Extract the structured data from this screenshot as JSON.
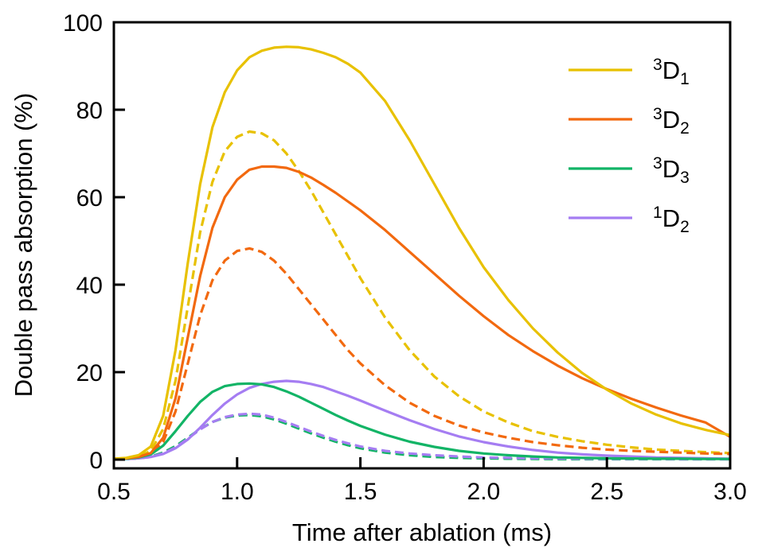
{
  "chart_data": {
    "type": "line",
    "title": "",
    "xlabel": "Time after ablation (ms)",
    "ylabel": "Double pass absorption (%)",
    "xlim": [
      0.5,
      3.0
    ],
    "ylim": [
      -2,
      100
    ],
    "xticks": [
      0.5,
      1.0,
      1.5,
      2.0,
      2.5,
      3.0
    ],
    "xtick_labels": [
      "0.5",
      "1.0",
      "1.5",
      "2.0",
      "2.5",
      "3.0"
    ],
    "yticks": [
      0,
      20,
      40,
      60,
      80,
      100
    ],
    "ytick_labels": [
      "0",
      "20",
      "40",
      "60",
      "80",
      "100"
    ],
    "grid": false,
    "legend_position": "top-right",
    "x": [
      0.5,
      0.55,
      0.6,
      0.65,
      0.7,
      0.75,
      0.8,
      0.85,
      0.9,
      0.95,
      1.0,
      1.05,
      1.1,
      1.15,
      1.2,
      1.25,
      1.3,
      1.35,
      1.4,
      1.45,
      1.5,
      1.6,
      1.7,
      1.8,
      1.9,
      2.0,
      2.1,
      2.2,
      2.3,
      2.4,
      2.5,
      2.6,
      2.7,
      2.8,
      2.9,
      3.0
    ],
    "series": [
      {
        "name": "3D1",
        "color": "#e8c100",
        "style": "solid",
        "values": [
          0.2,
          0.4,
          1.0,
          3,
          10,
          25,
          45,
          63,
          76,
          84,
          89,
          92,
          93.5,
          94.2,
          94.4,
          94.3,
          93.8,
          93,
          92,
          90.5,
          88.5,
          82,
          73,
          63,
          53,
          44,
          36.5,
          30,
          24.5,
          19.8,
          16,
          12.8,
          10.3,
          8.3,
          6.8,
          5.6
        ]
      },
      {
        "name": "3D2",
        "color": "#f2690f",
        "style": "solid",
        "values": [
          0.2,
          0.3,
          0.6,
          1.5,
          5,
          14,
          28,
          42,
          53,
          60,
          64,
          66.3,
          67,
          67,
          66.7,
          65.8,
          64.5,
          62.8,
          61,
          59,
          57,
          52.5,
          47.5,
          42.5,
          37.5,
          32.8,
          28.5,
          24.8,
          21.5,
          18.6,
          16.1,
          13.9,
          11.9,
          10.1,
          8.5,
          5.2
        ]
      },
      {
        "name": "3D3",
        "color": "#12b466",
        "style": "solid",
        "values": [
          0.1,
          0.2,
          0.5,
          1.2,
          3.2,
          6.5,
          10,
          13.2,
          15.5,
          16.8,
          17.3,
          17.4,
          17.2,
          16.6,
          15.6,
          14.4,
          13,
          11.6,
          10.2,
          8.9,
          7.7,
          5.7,
          4.1,
          2.9,
          2.0,
          1.4,
          1.0,
          0.7,
          0.5,
          0.4,
          0.3,
          0.25,
          0.2,
          0.2,
          0.15,
          0.15
        ]
      },
      {
        "name": "1D2",
        "color": "#a57df2",
        "style": "solid",
        "values": [
          0.1,
          0.15,
          0.3,
          0.6,
          1.3,
          2.6,
          4.6,
          7.3,
          10.2,
          12.8,
          14.9,
          16.4,
          17.3,
          17.8,
          18,
          17.8,
          17.3,
          16.6,
          15.6,
          14.6,
          13.5,
          11.2,
          9,
          7,
          5.3,
          4.0,
          3.0,
          2.2,
          1.6,
          1.2,
          0.9,
          0.7,
          0.5,
          0.4,
          0.3,
          0.2
        ]
      },
      {
        "name": "3D1 (dashed)",
        "color": "#e8c100",
        "style": "dashed",
        "values": [
          0.2,
          0.3,
          0.7,
          2,
          7,
          18,
          35,
          52,
          63.5,
          70.5,
          73.8,
          75,
          74.6,
          73,
          70,
          66,
          61.5,
          56.5,
          51.5,
          46.5,
          41.5,
          32.5,
          25,
          19,
          14.5,
          11,
          8.5,
          6.5,
          5.2,
          4.2,
          3.4,
          2.8,
          2.3,
          2.0,
          1.7,
          1.5
        ]
      },
      {
        "name": "3D2 (dashed)",
        "color": "#f2690f",
        "style": "dashed",
        "values": [
          0.2,
          0.3,
          0.6,
          1.5,
          4,
          11,
          22,
          33,
          41,
          45.5,
          47.7,
          48.3,
          47.5,
          45.5,
          42.5,
          39,
          35.5,
          32,
          28.5,
          25,
          22,
          17,
          13,
          10,
          7.8,
          6.2,
          5.0,
          4.0,
          3.3,
          2.7,
          2.3,
          2.0,
          1.8,
          1.6,
          1.4,
          1.3
        ]
      },
      {
        "name": "3D3 (dashed)",
        "color": "#12b466",
        "style": "dashed",
        "values": [
          0.1,
          0.15,
          0.3,
          0.7,
          1.6,
          3.1,
          5,
          7,
          8.6,
          9.6,
          10.1,
          10.2,
          9.9,
          9.2,
          8.2,
          7.1,
          6.0,
          5.0,
          4.1,
          3.3,
          2.6,
          1.6,
          1.0,
          0.6,
          0.4,
          0.3,
          0.2,
          0.15,
          0.1,
          0.1,
          0.1,
          0.1,
          0.1,
          0.1,
          0.1,
          0.1
        ]
      },
      {
        "name": "1D2 (dashed)",
        "color": "#a57df2",
        "style": "dashed",
        "values": [
          0.1,
          0.15,
          0.3,
          0.6,
          1.4,
          2.8,
          4.8,
          6.9,
          8.6,
          9.7,
          10.3,
          10.5,
          10.3,
          9.6,
          8.6,
          7.5,
          6.4,
          5.4,
          4.5,
          3.7,
          3.0,
          2.0,
          1.4,
          1.0,
          0.7,
          0.5,
          0.4,
          0.3,
          0.25,
          0.2,
          0.2,
          0.15,
          0.15,
          0.1,
          0.1,
          0.1
        ]
      }
    ],
    "legend": [
      {
        "sup": "3",
        "base": "D",
        "sub": "1",
        "color": "#e8c100"
      },
      {
        "sup": "3",
        "base": "D",
        "sub": "2",
        "color": "#f2690f"
      },
      {
        "sup": "3",
        "base": "D",
        "sub": "3",
        "color": "#12b466"
      },
      {
        "sup": "1",
        "base": "D",
        "sub": "2",
        "color": "#a57df2"
      }
    ]
  }
}
